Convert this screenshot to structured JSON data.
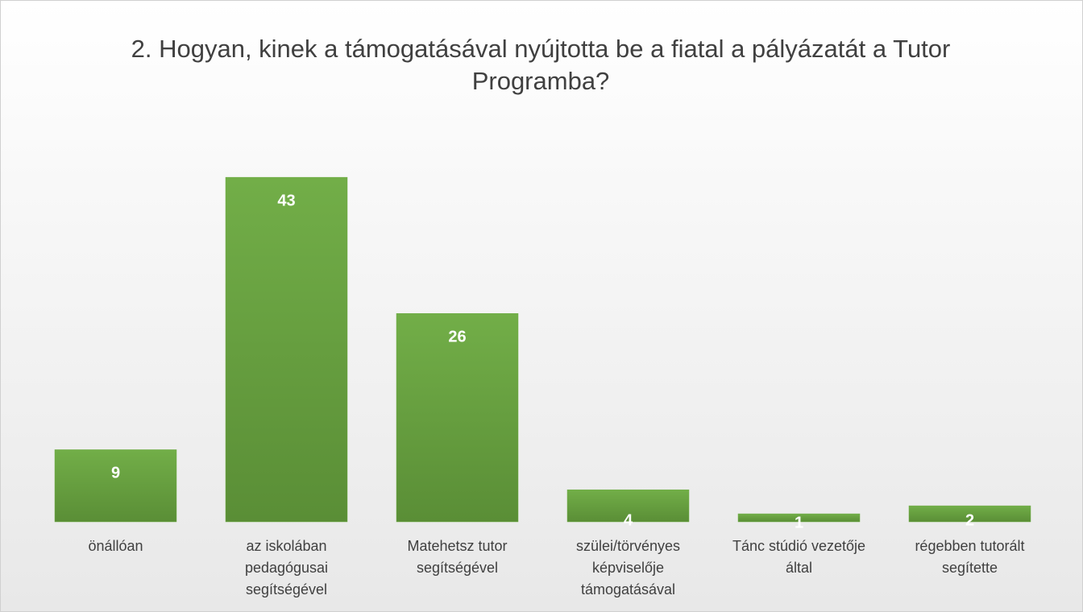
{
  "chart_data": {
    "type": "bar",
    "title": "2. Hogyan, kinek a támogatásával nyújtotta be a fiatal a pályázatát a Tutor Programba?",
    "categories": [
      "önállóan",
      "az iskolában pedagógusai segítségével",
      "Matehetsz tutor segítségével",
      "szülei/törvényes képviselője támogatásával",
      "Tánc stúdió vezetője által",
      "régebben tutorált segítette"
    ],
    "values": [
      9,
      43,
      26,
      4,
      1,
      2
    ],
    "color": "#70ad47"
  }
}
